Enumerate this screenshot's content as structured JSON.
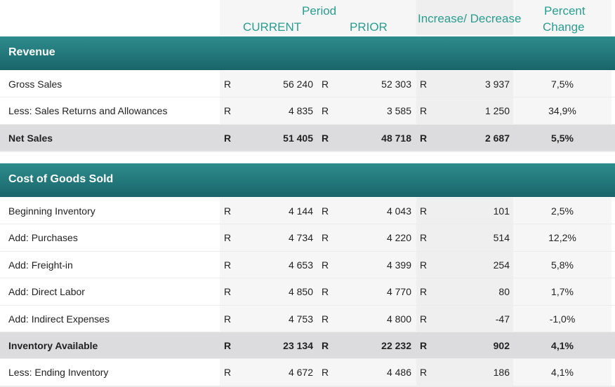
{
  "header": {
    "period": "Period",
    "current": "CURRENT",
    "prior": "PRIOR",
    "increase": "Increase/ Decrease",
    "percent_line1": "Percent",
    "percent_line2": "Change"
  },
  "sections": [
    {
      "title": "Revenue",
      "rows": [
        {
          "label": "Gross Sales",
          "cur_r": "R",
          "current": "56 240",
          "pri_r": "R",
          "prior": "52 303",
          "inc_r": "R",
          "increase": "3 937",
          "percent": "7,5%",
          "bold": false
        },
        {
          "label": "Less: Sales Returns and Allowances",
          "cur_r": "R",
          "current": "4 835",
          "pri_r": "R",
          "prior": "3 585",
          "inc_r": "R",
          "increase": "1 250",
          "percent": "34,9%",
          "bold": false
        },
        {
          "label": "Net Sales",
          "cur_r": "R",
          "current": "51 405",
          "pri_r": "R",
          "prior": "48 718",
          "inc_r": "R",
          "increase": "2 687",
          "percent": "5,5%",
          "bold": true
        }
      ]
    },
    {
      "title": "Cost of Goods Sold",
      "rows": [
        {
          "label": "Beginning Inventory",
          "cur_r": "R",
          "current": "4 144",
          "pri_r": "R",
          "prior": "4 043",
          "inc_r": "R",
          "increase": "101",
          "percent": "2,5%",
          "bold": false
        },
        {
          "label": "Add: Purchases",
          "cur_r": "R",
          "current": "4 734",
          "pri_r": "R",
          "prior": "4 220",
          "inc_r": "R",
          "increase": "514",
          "percent": "12,2%",
          "bold": false
        },
        {
          "label": "Add: Freight-in",
          "cur_r": "R",
          "current": "4 653",
          "pri_r": "R",
          "prior": "4 399",
          "inc_r": "R",
          "increase": "254",
          "percent": "5,8%",
          "bold": false
        },
        {
          "label": "Add: Direct Labor",
          "cur_r": "R",
          "current": "4 850",
          "pri_r": "R",
          "prior": "4 770",
          "inc_r": "R",
          "increase": "80",
          "percent": "1,7%",
          "bold": false
        },
        {
          "label": "Add: Indirect Expenses",
          "cur_r": "R",
          "current": "4 753",
          "pri_r": "R",
          "prior": "4 800",
          "inc_r": "R",
          "increase": "-47",
          "percent": "-1,0%",
          "bold": false
        },
        {
          "label": "Inventory Available",
          "cur_r": "R",
          "current": "23 134",
          "pri_r": "R",
          "prior": "22 232",
          "inc_r": "R",
          "increase": "902",
          "percent": "4,1%",
          "bold": true
        },
        {
          "label": "Less: Ending Inventory",
          "cur_r": "R",
          "current": "4 672",
          "pri_r": "R",
          "prior": "4 486",
          "inc_r": "R",
          "increase": "186",
          "percent": "4,1%",
          "bold": false
        }
      ]
    }
  ],
  "colors": {
    "header_text": "#2a9d8f",
    "band_top": "#2e8c8c",
    "band_bottom": "#19656a",
    "bold_row": "#dcdcde",
    "normal_row": "#f6f6f7"
  }
}
